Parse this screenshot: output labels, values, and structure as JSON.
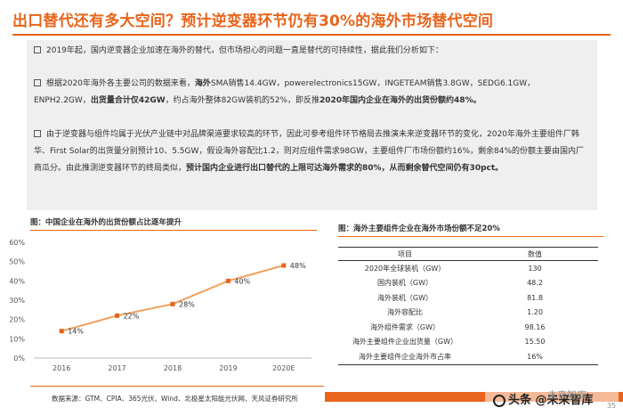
{
  "header": {
    "title": "出口替代还有多大空间？预计逆变器环节仍有30%的海外市场替代空间"
  },
  "bullets": {
    "b1": "2019年起，国内逆变器企业加速在海外的替代，但市场担心的问题一直是替代的可持续性，据此我们分析如下：",
    "b2_a": "根据2020年海外各主要公司的数据来看，",
    "b2_b": "海外",
    "b2_c": "SMA销售14.4GW，powerelectronics15GW，INGETEAM销售3.8GW，SEDG6.1GW，ENPH2.2GW，",
    "b2_d": "出货量合计仅42GW",
    "b2_e": "，约占海外整体82GW装机的52%，即反推",
    "b2_f": "2020年国内企业在海外的出货份额约48%。",
    "b3_a": "由于逆变器与组件均属于光伏产业链中对品牌渠道要求较高的环节，因此可参考组件环节格局去推演未来逆变器环节的变化，2020年海外主要组件厂韩华、First Solar的出货量分别预计10、5.5GW，假设海外容配比1.2，则对应组件需求98GW，主要组件厂市场份额约16%，剩余84%的份额主要由国内厂商瓜分。由此推测逆变器环节的终局类似，",
    "b3_b": "预计国内企业进行出口替代的上限可达海外需求的80%，从而剩余替代空间仍有30pct。"
  },
  "chart": {
    "title": "图：中国企业在海外的出货份额占比逐年提升"
  },
  "chart_data": {
    "type": "line",
    "title": "图：中国企业在海外的出货份额占比逐年提升",
    "categories": [
      "2016",
      "2017",
      "2018",
      "2019",
      "2020E"
    ],
    "values": [
      14,
      22,
      28,
      40,
      48
    ],
    "data_labels": [
      "14%",
      "22%",
      "28%",
      "40%",
      "48%"
    ],
    "y_ticks": [
      "0%",
      "10%",
      "20%",
      "30%",
      "40%",
      "50%",
      "60%"
    ],
    "ylim": [
      0,
      60
    ],
    "xlabel": "",
    "ylabel": "",
    "grid": false,
    "line_color": "#f0a05a",
    "marker_color": "#e8641b"
  },
  "table": {
    "title": "图：海外主要组件企业在海外市场份额不足20%",
    "headers": [
      "项目",
      "数值"
    ],
    "rows": [
      [
        "2020年全球装机（GW）",
        "130"
      ],
      [
        "国内装机（GW）",
        "48.2"
      ],
      [
        "海外装机（GW）",
        "81.8"
      ],
      [
        "海外容配比",
        "1.20"
      ],
      [
        "海外组件需求（GW）",
        "98.16"
      ],
      [
        "海外主要组件企业出货量（GW）",
        "15.50"
      ],
      [
        "海外主要组件企业海外市占率",
        "16%"
      ]
    ]
  },
  "footer": {
    "source": "数据来源：GTM、CPIA、365光伏、Wind、北极星太阳能光伏网、天风证券研究所",
    "watermark": "头条 @未来智库",
    "watermark_faint": "未来智库",
    "page": "35"
  },
  "colors": {
    "accent": "#e8641b",
    "bullet_bg": "#efefef"
  }
}
